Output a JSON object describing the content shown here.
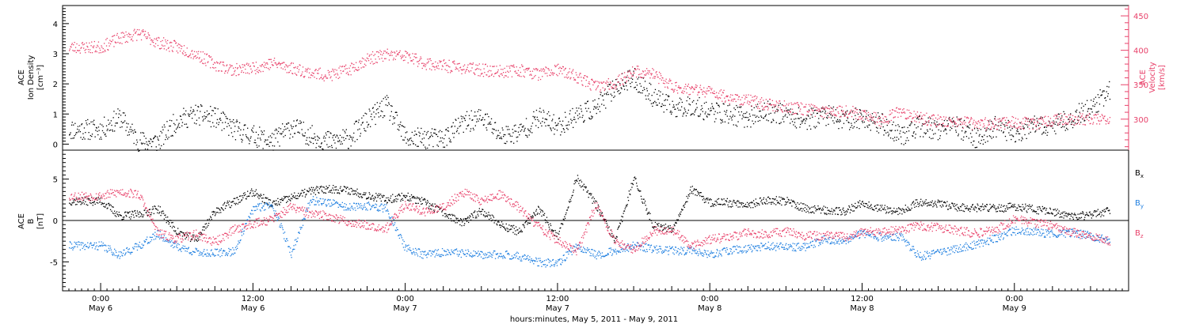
{
  "chart_data": [
    {
      "type": "scatter",
      "panel": "top",
      "y_left_label": [
        "ACE",
        "Ion Density",
        "[cm⁻³]"
      ],
      "y_right_label": [
        "ACE",
        "Velocity",
        "[km/s]"
      ],
      "y_left_ticks": [
        "0",
        "1",
        "2",
        "3",
        "4"
      ],
      "y_left_range": [
        -0.2,
        4.6
      ],
      "y_right_ticks": [
        "300",
        "350",
        "400",
        "450"
      ],
      "y_right_range": [
        255,
        465
      ],
      "right_axis_color": "#e8416a",
      "series": [
        {
          "name": "",
          "color": "#000000",
          "x": [
            0,
            3,
            6,
            9,
            12,
            15,
            18,
            21,
            24,
            27,
            30,
            33,
            36,
            39,
            42,
            45,
            48,
            51,
            54,
            57,
            60,
            63,
            66,
            69,
            72,
            75,
            78,
            81,
            84,
            87,
            90,
            93,
            96,
            99,
            102,
            105,
            108,
            111,
            114,
            117,
            120,
            123,
            126,
            129,
            132,
            135,
            138,
            141,
            144,
            147,
            150,
            153,
            156,
            159
          ],
          "values": [
            0.5,
            0.9,
            0.1,
            0.1,
            0.8,
            1.0,
            0.9,
            0.5,
            0.3,
            0.1,
            0.6,
            0.3,
            0.1,
            0.2,
            0.8,
            1.3,
            0.2,
            0.2,
            0.2,
            0.7,
            0.9,
            0.3,
            0.4,
            0.9,
            0.6,
            1.0,
            1.2,
            1.9,
            2.2,
            1.6,
            1.2,
            1.3,
            1.1,
            1.0,
            0.9,
            1.1,
            1.0,
            0.8,
            1.0,
            0.8,
            0.9,
            0.7,
            0.3,
            0.6,
            0.5,
            0.6,
            0.2,
            0.6,
            0.4,
            0.6,
            0.6,
            0.9,
            1.2,
            1.8
          ]
        },
        {
          "name": "",
          "color": "#e8416a",
          "axis": "right",
          "x": [
            0,
            3,
            6,
            9,
            12,
            15,
            18,
            21,
            24,
            27,
            30,
            33,
            36,
            39,
            42,
            45,
            48,
            51,
            54,
            57,
            60,
            63,
            66,
            69,
            72,
            75,
            78,
            81,
            84,
            87,
            90,
            93,
            96,
            99,
            102,
            105,
            108,
            111,
            114,
            117,
            120,
            123,
            126,
            129,
            132,
            135,
            138,
            141,
            144,
            147,
            150,
            153,
            156,
            159
          ],
          "values": [
            405,
            418,
            425,
            412,
            405,
            395,
            380,
            372,
            375,
            382,
            375,
            368,
            364,
            372,
            388,
            394,
            392,
            382,
            378,
            375,
            372,
            370,
            372,
            366,
            372,
            362,
            348,
            352,
            370,
            366,
            348,
            344,
            340,
            332,
            328,
            322,
            318,
            315,
            312,
            313,
            308,
            298,
            312,
            302,
            298,
            296,
            294,
            294,
            296,
            293,
            300,
            301,
            300,
            298
          ]
        }
      ],
      "annotations": [
        {
          "text": "",
          "x": 96.5,
          "y": 420
        }
      ]
    },
    {
      "type": "scatter",
      "panel": "bottom",
      "y_label": [
        "ACE",
        "B",
        "[nT]"
      ],
      "y_ticks": [
        "-5",
        "0",
        "5"
      ],
      "y_range": [
        -8.5,
        8.5
      ],
      "zero_line": true,
      "x_range_hours": [
        -6,
        162
      ],
      "x_tick_labels": [
        {
          "x": 0,
          "time": "0:00",
          "date": "May 6"
        },
        {
          "x": 24,
          "time": "12:00",
          "date": "May 6"
        },
        {
          "x": 48,
          "time": "0:00",
          "date": "May 7"
        },
        {
          "x": 72,
          "time": "12:00",
          "date": "May 7"
        },
        {
          "x": 96,
          "time": "0:00",
          "date": "May 8"
        },
        {
          "x": 120,
          "time": "12:00",
          "date": "May 8"
        },
        {
          "x": 144,
          "time": "0:00",
          "date": "May 9"
        }
      ],
      "xlabel": "hours:minutes, May  5, 2011 - May  9, 2011",
      "series": [
        {
          "name": "Bx",
          "legend_main": "B",
          "legend_sub": "x",
          "color": "#000000",
          "x": [
            0,
            3,
            6,
            9,
            12,
            15,
            18,
            21,
            24,
            27,
            30,
            33,
            36,
            39,
            42,
            45,
            48,
            51,
            54,
            57,
            60,
            63,
            66,
            69,
            72,
            75,
            78,
            81,
            84,
            87,
            90,
            93,
            96,
            99,
            102,
            105,
            108,
            111,
            114,
            117,
            120,
            123,
            126,
            129,
            132,
            135,
            138,
            141,
            144,
            147,
            150,
            153,
            156,
            159
          ],
          "values": [
            2.4,
            0.6,
            0.8,
            1.5,
            -1.3,
            -2.3,
            1.2,
            2.3,
            3.5,
            2.0,
            2.8,
            3.6,
            3.9,
            3.7,
            3.1,
            2.6,
            3.0,
            2.2,
            1.0,
            -0.3,
            1.3,
            -0.5,
            -1.3,
            1.4,
            -2.0,
            5.2,
            2.0,
            -2.5,
            5.2,
            -0.5,
            -1.0,
            3.8,
            2.2,
            2.2,
            2.0,
            2.5,
            2.4,
            1.5,
            1.3,
            1.1,
            2.2,
            1.5,
            1.2,
            2.3,
            2.1,
            1.6,
            1.6,
            1.5,
            1.7,
            1.4,
            1.1,
            0.6,
            0.7,
            1.3
          ]
        },
        {
          "name": "By",
          "legend_main": "B",
          "legend_sub": "y",
          "color": "#1f7fe0",
          "x": [
            0,
            3,
            6,
            9,
            12,
            15,
            18,
            21,
            24,
            27,
            30,
            33,
            36,
            39,
            42,
            45,
            48,
            51,
            54,
            57,
            60,
            63,
            66,
            69,
            72,
            75,
            78,
            81,
            84,
            87,
            90,
            93,
            96,
            99,
            102,
            105,
            108,
            111,
            114,
            117,
            120,
            123,
            126,
            129,
            132,
            135,
            138,
            141,
            144,
            147,
            150,
            153,
            156,
            159
          ],
          "values": [
            -3.0,
            -4.1,
            -3.0,
            -1.6,
            -3.1,
            -3.8,
            -3.9,
            -3.7,
            1.5,
            2.0,
            -4.0,
            2.5,
            2.2,
            1.6,
            1.8,
            1.5,
            -3.3,
            -4.1,
            -3.8,
            -3.9,
            -4.2,
            -4.0,
            -4.3,
            -5.0,
            -5.2,
            -3.0,
            -4.1,
            -3.6,
            -3.0,
            -3.4,
            -3.6,
            -3.6,
            -4.1,
            -3.6,
            -3.3,
            -3.0,
            -3.2,
            -3.1,
            -2.2,
            -2.5,
            -1.5,
            -2.0,
            -1.9,
            -4.3,
            -3.9,
            -3.4,
            -2.8,
            -2.1,
            -1.2,
            -1.3,
            -1.6,
            -1.4,
            -1.8,
            -2.4
          ]
        },
        {
          "name": "Bz",
          "legend_main": "B",
          "legend_sub": "z",
          "color": "#e8416a",
          "x": [
            0,
            3,
            6,
            9,
            12,
            15,
            18,
            21,
            24,
            27,
            30,
            33,
            36,
            39,
            42,
            45,
            48,
            51,
            54,
            57,
            60,
            63,
            66,
            69,
            72,
            75,
            78,
            81,
            84,
            87,
            90,
            93,
            96,
            99,
            102,
            105,
            108,
            111,
            114,
            117,
            120,
            123,
            126,
            129,
            132,
            135,
            138,
            141,
            144,
            147,
            150,
            153,
            156,
            159
          ],
          "values": [
            3.0,
            3.5,
            3.2,
            -1.5,
            -2.2,
            -1.6,
            -2.6,
            -1.0,
            -0.3,
            0.2,
            1.7,
            0.8,
            0.6,
            -0.2,
            -0.5,
            -0.9,
            2.0,
            1.1,
            1.6,
            3.5,
            2.4,
            3.2,
            1.5,
            -0.7,
            -2.4,
            -3.8,
            2.0,
            -2.5,
            -3.5,
            -1.2,
            -1.1,
            -3.0,
            -2.2,
            -2.0,
            -1.4,
            -1.6,
            -1.3,
            -1.8,
            -1.8,
            -1.9,
            -1.4,
            -1.3,
            -1.1,
            -0.6,
            -0.8,
            -1.2,
            -1.5,
            -1.1,
            0.2,
            -0.2,
            -0.6,
            -1.4,
            -1.9,
            -2.4
          ]
        }
      ]
    }
  ]
}
